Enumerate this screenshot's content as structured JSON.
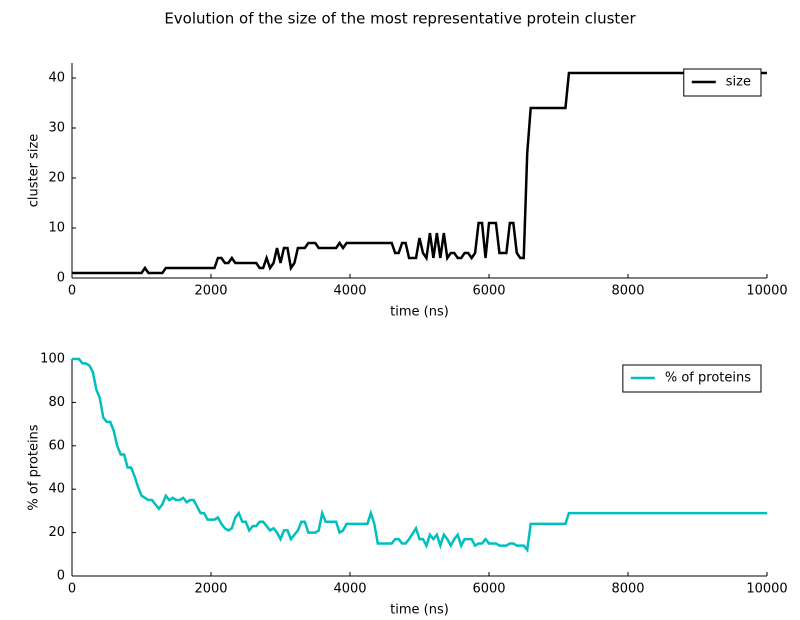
{
  "title": "Evolution of the size of the most representative protein cluster",
  "chart_data": [
    {
      "type": "line",
      "xlabel": "time (ns)",
      "ylabel": "cluster size",
      "xlim": [
        0,
        10000
      ],
      "ylim": [
        0,
        43
      ],
      "xticks": [
        0,
        2000,
        4000,
        6000,
        8000,
        10000
      ],
      "yticks": [
        0,
        10,
        20,
        30,
        40
      ],
      "legend": "upper right",
      "x": [
        0,
        1000,
        1050,
        1100,
        1300,
        1350,
        2050,
        2100,
        2150,
        2200,
        2250,
        2300,
        2350,
        2650,
        2700,
        2750,
        2800,
        2850,
        2900,
        2950,
        3000,
        3050,
        3100,
        3150,
        3200,
        3250,
        3350,
        3400,
        3500,
        3550,
        3800,
        3850,
        3900,
        3950,
        4600,
        4650,
        4700,
        4750,
        4800,
        4850,
        4950,
        5000,
        5050,
        5100,
        5150,
        5200,
        5250,
        5300,
        5350,
        5400,
        5450,
        5500,
        5550,
        5600,
        5650,
        5700,
        5750,
        5800,
        5850,
        5900,
        5950,
        6000,
        6100,
        6150,
        6250,
        6300,
        6350,
        6400,
        6450,
        6500,
        6550,
        6600,
        7100,
        7150,
        10000
      ],
      "series": [
        {
          "name": "size",
          "color": "#000000",
          "values": [
            1,
            1,
            2,
            1,
            1,
            2,
            2,
            4,
            4,
            3,
            3,
            4,
            3,
            3,
            2,
            2,
            4,
            2,
            3,
            6,
            3,
            6,
            6,
            2,
            3,
            6,
            6,
            7,
            7,
            6,
            6,
            7,
            6,
            7,
            7,
            5,
            5,
            7,
            7,
            4,
            4,
            8,
            5,
            4,
            9,
            4,
            9,
            4,
            9,
            4,
            5,
            5,
            4,
            4,
            5,
            5,
            4,
            5,
            11,
            11,
            4,
            11,
            11,
            5,
            5,
            11,
            11,
            5,
            4,
            4,
            25,
            34,
            34,
            41,
            41
          ]
        }
      ]
    },
    {
      "type": "line",
      "xlabel": "time (ns)",
      "ylabel": "% of proteins",
      "xlim": [
        0,
        10000
      ],
      "ylim": [
        0,
        100
      ],
      "xticks": [
        0,
        2000,
        4000,
        6000,
        8000,
        10000
      ],
      "yticks": [
        0,
        20,
        40,
        60,
        80,
        100
      ],
      "legend": "upper right",
      "x": [
        0,
        100,
        150,
        200,
        250,
        300,
        350,
        400,
        450,
        500,
        550,
        600,
        650,
        700,
        750,
        800,
        850,
        900,
        950,
        1000,
        1050,
        1100,
        1150,
        1200,
        1250,
        1300,
        1350,
        1400,
        1450,
        1500,
        1550,
        1600,
        1650,
        1700,
        1750,
        1800,
        1850,
        1900,
        1950,
        2050,
        2100,
        2150,
        2200,
        2250,
        2300,
        2350,
        2400,
        2450,
        2500,
        2550,
        2600,
        2650,
        2700,
        2750,
        2800,
        2850,
        2900,
        2950,
        3000,
        3050,
        3100,
        3150,
        3200,
        3250,
        3300,
        3350,
        3400,
        3500,
        3550,
        3600,
        3650,
        3750,
        3800,
        3850,
        3900,
        3950,
        4250,
        4300,
        4350,
        4400,
        4600,
        4650,
        4700,
        4750,
        4800,
        4850,
        4950,
        5000,
        5050,
        5100,
        5150,
        5200,
        5250,
        5300,
        5350,
        5400,
        5450,
        5500,
        5550,
        5600,
        5650,
        5750,
        5800,
        5850,
        5900,
        5950,
        6000,
        6100,
        6150,
        6250,
        6300,
        6350,
        6400,
        6500,
        6550,
        6600,
        7100,
        7150,
        10000
      ],
      "series": [
        {
          "name": "% of proteins",
          "color": "#00bfbf",
          "values": [
            100,
            100,
            98,
            98,
            97,
            94,
            86,
            82,
            73,
            71,
            71,
            67,
            60,
            56,
            56,
            50,
            50,
            46,
            41,
            37,
            36,
            35,
            35,
            33,
            31,
            33,
            37,
            35,
            36,
            35,
            35,
            36,
            34,
            35,
            35,
            32,
            29,
            29,
            26,
            26,
            27,
            24,
            22,
            21,
            22,
            27,
            29,
            25,
            25,
            21,
            23,
            23,
            25,
            25,
            23,
            21,
            22,
            20,
            17,
            21,
            21,
            17,
            19,
            21,
            25,
            25,
            20,
            20,
            21,
            29,
            25,
            25,
            25,
            20,
            21,
            24,
            24,
            29,
            24,
            15,
            15,
            17,
            17,
            15,
            15,
            17,
            22,
            17,
            17,
            14,
            19,
            17,
            19,
            14,
            19,
            17,
            14,
            17,
            19,
            14,
            17,
            17,
            14,
            15,
            15,
            17,
            15,
            15,
            14,
            14,
            15,
            15,
            14,
            14,
            12,
            24,
            24,
            29,
            29
          ]
        }
      ]
    }
  ]
}
